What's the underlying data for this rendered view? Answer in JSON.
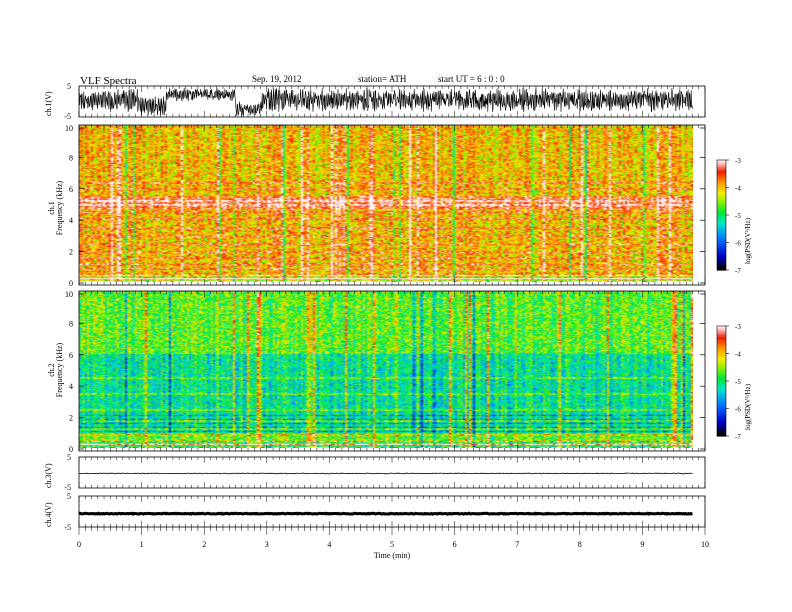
{
  "header": {
    "title": "VLF  Spectra",
    "date": "Sep. 19, 2012",
    "station": "station= ATH",
    "start": "start  UT  =    6  : 0   : 0"
  },
  "chart_data": [
    {
      "type": "line",
      "panel": "ch1-waveform",
      "ylabel": "ch.1(V)",
      "ylim": [
        -5,
        5
      ],
      "yticks": [
        "5",
        "-5"
      ],
      "xlim": [
        0,
        10
      ],
      "description_values": {
        "segments": [
          {
            "x": [
              0.0,
              0.95
            ],
            "amplitude": [
              -3.5,
              4.5
            ]
          },
          {
            "x": [
              0.95,
              1.4
            ],
            "amplitude": [
              -5,
              2
            ]
          },
          {
            "x": [
              1.4,
              2.5
            ],
            "amplitude": [
              0,
              4.5
            ]
          },
          {
            "x": [
              2.5,
              2.9
            ],
            "amplitude": [
              -5,
              0
            ]
          },
          {
            "x": [
              2.9,
              9.8
            ],
            "amplitude": [
              -3.5,
              4.5
            ]
          }
        ]
      }
    },
    {
      "type": "heatmap",
      "panel": "ch1-spectrogram",
      "ylabel": "ch.1\nFrequency  (kHz)",
      "ylim": [
        0,
        10
      ],
      "yticks": [
        "0",
        "2",
        "4",
        "6",
        "8",
        "10"
      ],
      "xlim": [
        0,
        9.8
      ],
      "colorbar": {
        "label": "log(PSD(V²/Hz)",
        "range": [
          -7,
          -3
        ],
        "ticks": [
          "-3",
          "-4",
          "-5",
          "-6",
          "-7"
        ]
      },
      "dominant_level": -4.0,
      "bands_khz": [
        0.3,
        0.6,
        0.9,
        1.2,
        1.6,
        2.0,
        2.5,
        3.0,
        3.5,
        4.1,
        4.5,
        5.0,
        5.2,
        5.5,
        6.0,
        6.4
      ]
    },
    {
      "type": "heatmap",
      "panel": "ch2-spectrogram",
      "ylabel": "ch.2\nFrequency  (kHz)",
      "ylim": [
        0,
        10
      ],
      "yticks": [
        "0",
        "2",
        "4",
        "6",
        "8",
        "10"
      ],
      "xlim": [
        0,
        9.8
      ],
      "colorbar": {
        "label": "log(PSD(V²/Hz)",
        "range": [
          -7,
          -3
        ],
        "ticks": [
          "-3",
          "-4",
          "-5",
          "-6",
          "-7"
        ]
      },
      "dominant_level": -4.7,
      "bands_khz": [
        0.3,
        0.6,
        0.9,
        1.3,
        1.8,
        2.5,
        3.5,
        4.5
      ]
    },
    {
      "type": "line",
      "panel": "ch3-waveform",
      "ylabel": "ch.3(V)",
      "ylim": [
        -5,
        5
      ],
      "yticks": [
        "5",
        "-5"
      ],
      "x": [
        0,
        9.8
      ],
      "y": [
        -0.3,
        -0.3
      ]
    },
    {
      "type": "line",
      "panel": "ch4-waveform",
      "ylabel": "ch.4(V)",
      "ylim": [
        -5,
        5
      ],
      "yticks": [
        "5",
        "-5"
      ],
      "x": [
        0,
        9.8
      ],
      "y": [
        -0.7,
        -0.7
      ]
    }
  ],
  "xaxis": {
    "label": "Time  (min)",
    "ticks": [
      "0",
      "1",
      "2",
      "3",
      "4",
      "5",
      "6",
      "7",
      "8",
      "9",
      "10"
    ]
  }
}
